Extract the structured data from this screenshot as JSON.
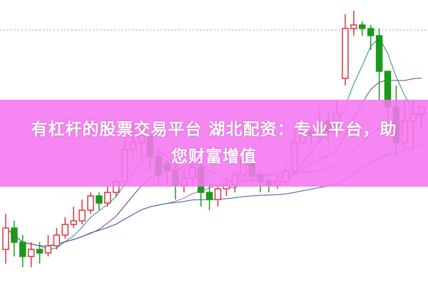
{
  "banner": {
    "line1": "有杠杆的股票交易平台 湖北配资：专业平台，助",
    "line2": "您财富增值",
    "color": "#f576f0"
  },
  "chart_data": {
    "type": "candlestick",
    "ylim": [
      0,
      40
    ],
    "up_color": "#d9363e",
    "down_color": "#1a9a1a",
    "moving_averages": [
      {
        "period": 5,
        "color": "#2a8a8a"
      },
      {
        "period": 10,
        "color": "#7a3a7a"
      },
      {
        "period": 20,
        "color": "#c060c0"
      },
      {
        "period": 40,
        "color": "#3a5aa8"
      }
    ],
    "candles": [
      [
        5,
        8,
        10,
        3
      ],
      [
        8,
        6,
        9,
        4
      ],
      [
        6,
        4,
        7,
        2.5
      ],
      [
        4,
        5,
        6,
        2.5
      ],
      [
        5,
        4.5,
        6,
        3
      ],
      [
        4.5,
        5.5,
        7,
        4
      ],
      [
        5.5,
        7,
        8,
        5
      ],
      [
        7,
        8.5,
        9.5,
        6.5
      ],
      [
        8.5,
        9,
        11,
        8
      ],
      [
        9,
        10.5,
        12,
        8.5
      ],
      [
        10.5,
        12.5,
        13,
        10
      ],
      [
        12.5,
        11.5,
        13,
        10.5
      ],
      [
        11.5,
        13,
        14,
        11
      ],
      [
        13,
        14.5,
        15,
        12.5
      ],
      [
        14.5,
        19,
        22,
        14
      ],
      [
        19,
        20,
        23,
        18
      ],
      [
        20,
        21,
        22,
        18
      ],
      [
        21,
        18,
        21,
        16
      ],
      [
        18,
        15.5,
        19,
        14
      ],
      [
        17,
        16,
        17.5,
        14
      ],
      [
        16,
        14,
        17,
        12
      ],
      [
        14,
        15,
        16,
        13
      ],
      [
        15,
        16.5,
        17,
        14
      ],
      [
        16.5,
        13,
        17,
        11
      ],
      [
        13,
        12,
        14,
        10.5
      ],
      [
        12,
        13.5,
        14,
        11
      ],
      [
        13.5,
        14,
        15,
        12.5
      ],
      [
        14,
        15.5,
        16,
        13
      ],
      [
        15.5,
        17.5,
        18,
        15
      ],
      [
        17.5,
        15.5,
        18,
        14.5
      ],
      [
        15.5,
        14.5,
        16,
        13
      ],
      [
        14.5,
        14,
        15,
        13
      ],
      [
        14,
        14.5,
        15.5,
        13.5
      ],
      [
        14.5,
        16,
        17,
        14
      ],
      [
        16,
        20,
        22,
        15.5
      ],
      [
        20,
        21.5,
        21.5,
        20
      ],
      [
        21.5,
        21,
        22,
        19.5
      ],
      [
        21,
        23,
        25,
        20
      ],
      [
        23,
        21.5,
        24,
        20
      ],
      [
        21.5,
        24,
        26,
        21
      ],
      [
        29,
        36,
        38,
        28
      ],
      [
        36,
        36.5,
        38.5,
        35
      ],
      [
        36.5,
        36,
        37,
        35
      ],
      [
        36,
        35,
        36.5,
        33
      ],
      [
        35,
        30,
        36,
        26
      ],
      [
        30,
        25,
        30,
        22
      ],
      [
        25,
        20,
        28,
        18
      ],
      [
        20,
        23,
        26,
        19
      ],
      [
        23,
        24,
        26,
        19
      ],
      [
        24,
        25,
        25,
        22
      ]
    ]
  }
}
